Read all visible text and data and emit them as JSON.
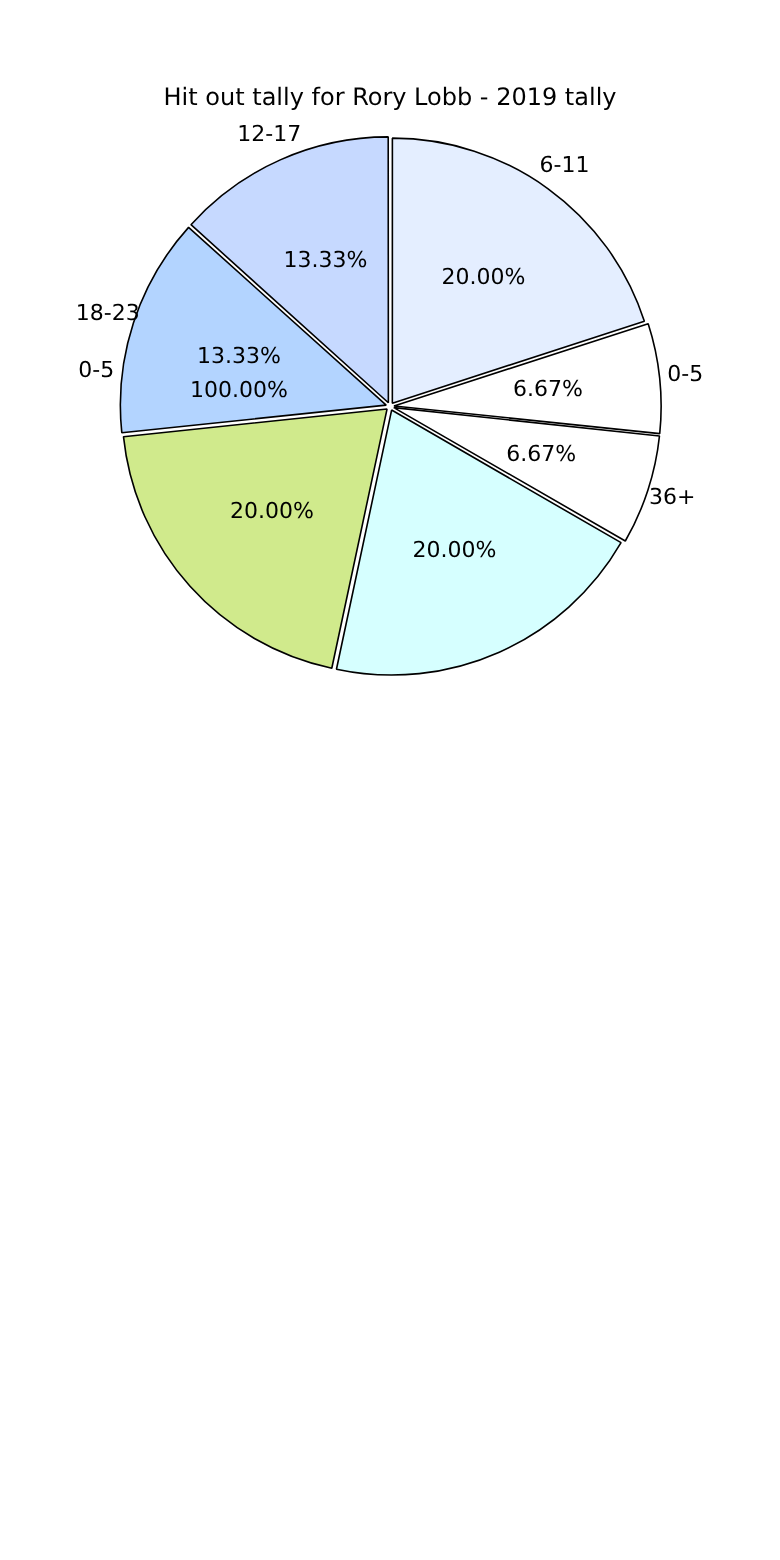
{
  "chart_data": {
    "type": "pie",
    "title": "Hit out tally for Rory Lobb - 2019 tally",
    "categories": [
      "6-11",
      "0-5",
      "36+",
      null,
      null,
      "18-23",
      "12-17"
    ],
    "values": [
      20,
      6.67,
      6.67,
      20,
      20,
      13.33,
      13.33
    ],
    "value_labels": [
      "20.00%",
      "6.67%",
      "6.67%",
      "20.00%",
      "20.00%",
      "13.33%",
      "13.33%"
    ],
    "colors": [
      "#e4eeff",
      "#ffffff",
      "#ffffff",
      "#d6ffff",
      "#d0ea8c",
      "#b3d4ff",
      "#c6d9ff"
    ],
    "annotations": [
      "0-5",
      "100.00%"
    ],
    "legend": false
  }
}
